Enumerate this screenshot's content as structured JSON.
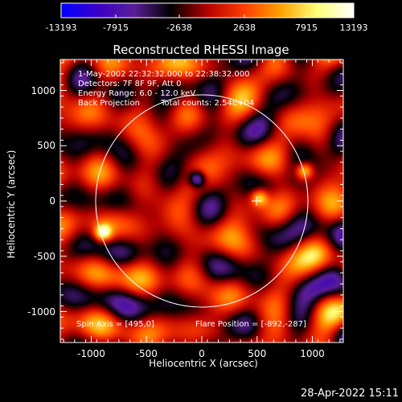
{
  "colors": {
    "background": "#000000",
    "text": "#ffffff",
    "colorscale": [
      "#0000ff",
      "#3a00c8",
      "#5a1e96",
      "#000000",
      "#b40000",
      "#ff3c00",
      "#ffa000",
      "#ffff78",
      "#ffffff"
    ],
    "circle": "#ffffff"
  },
  "colorbar": {
    "tick_labels": [
      "-13193",
      "-7915",
      "-2638",
      "2638",
      "7915",
      "13193"
    ],
    "min": -13193,
    "max": 13193
  },
  "header": {
    "title": "Reconstructed RHESSI Image"
  },
  "info": {
    "line1": "1-May-2002 22:32:32.000 to 22:38:32.000",
    "line2": "Detectors: 7F 8F 9F, Att 0",
    "line3": "Energy Range: 6.0 - 12.0 keV",
    "line4_left": "Back Projection",
    "line4_right": "Total counts: 2.54E+04",
    "spin_axis": "Spin Axis = [495,0]",
    "flare_position": "Flare Position = [-892,-287]"
  },
  "footer": {
    "timestamp": "28-Apr-2022 15:11"
  },
  "chart_data": {
    "type": "heatmap",
    "title": "Reconstructed RHESSI Image",
    "xlabel": "Heliocentric X (arcsec)",
    "ylabel": "Heliocentric Y (arcsec)",
    "xlim": [
      -1280,
      1280
    ],
    "ylim": [
      -1280,
      1280
    ],
    "x_ticks": [
      -1000,
      -500,
      0,
      500,
      1000
    ],
    "y_ticks": [
      -1000,
      -500,
      0,
      500,
      1000
    ],
    "x_tick_labels": [
      "-1000",
      "-500",
      "0",
      "500",
      "1000"
    ],
    "y_tick_labels": [
      "-1000",
      "-500",
      "0",
      "500",
      "1000"
    ],
    "value_range": [
      -13193,
      13193
    ],
    "solar_limb_radius_arcsec": 960,
    "sources": [
      {
        "x": -892,
        "y": -287,
        "peak": 12000
      },
      {
        "x": 930,
        "y": 270,
        "peak": 11000
      },
      {
        "x": 520,
        "y": 30,
        "peak": 10000
      },
      {
        "x": -40,
        "y": 200,
        "peak": -11000
      }
    ],
    "markers": [
      {
        "type": "cross",
        "x": 495,
        "y": 0
      }
    ]
  }
}
